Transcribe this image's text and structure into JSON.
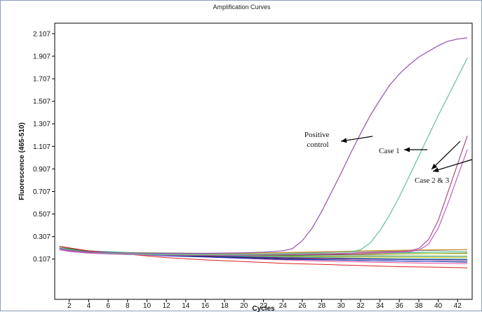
{
  "chart_data": {
    "type": "line",
    "title": "Amplification Curves",
    "xlabel": "Cycles",
    "ylabel": "Fluorescence (465-510)",
    "xlim": [
      0.5,
      43.5
    ],
    "ylim": [
      -0.25,
      2.2
    ],
    "x_ticks": [
      2,
      4,
      6,
      8,
      10,
      12,
      14,
      16,
      18,
      20,
      22,
      24,
      26,
      28,
      30,
      32,
      34,
      36,
      38,
      40,
      42
    ],
    "y_ticks": [
      0.107,
      0.307,
      0.507,
      0.707,
      0.907,
      1.107,
      1.307,
      1.507,
      1.707,
      1.907,
      2.107
    ],
    "y_tick_labels": [
      "0.107",
      "0.307",
      "0.507",
      "0.707",
      "0.907",
      "1.107",
      "1.307",
      "1.507",
      "1.707",
      "1.907",
      "2.107"
    ],
    "grid": false,
    "legend": "none",
    "series": [
      {
        "color": "#9a5cb4",
        "x": [
          1,
          2,
          4,
          6,
          8,
          10,
          12,
          14,
          16,
          18,
          20,
          22,
          24,
          25,
          26,
          27,
          28,
          29,
          30,
          31,
          32,
          33,
          34,
          35,
          36,
          37,
          38,
          39,
          40,
          41,
          42,
          43
        ],
        "y": [
          0.2,
          0.185,
          0.17,
          0.165,
          0.16,
          0.158,
          0.157,
          0.157,
          0.158,
          0.16,
          0.163,
          0.168,
          0.18,
          0.2,
          0.27,
          0.38,
          0.53,
          0.7,
          0.87,
          1.05,
          1.22,
          1.38,
          1.52,
          1.65,
          1.75,
          1.83,
          1.9,
          1.95,
          2.0,
          2.04,
          2.06,
          2.07
        ]
      },
      {
        "color": "#6cc79a",
        "x": [
          1,
          2,
          4,
          6,
          8,
          10,
          12,
          14,
          16,
          18,
          20,
          22,
          24,
          26,
          28,
          30,
          31,
          32,
          33,
          34,
          35,
          36,
          37,
          38,
          39,
          40,
          41,
          42,
          43
        ],
        "y": [
          0.21,
          0.19,
          0.17,
          0.16,
          0.155,
          0.15,
          0.148,
          0.147,
          0.147,
          0.148,
          0.15,
          0.152,
          0.155,
          0.158,
          0.162,
          0.168,
          0.172,
          0.19,
          0.25,
          0.36,
          0.5,
          0.66,
          0.84,
          1.02,
          1.2,
          1.38,
          1.55,
          1.72,
          1.89
        ]
      },
      {
        "color": "#b05c8c",
        "x": [
          1,
          2,
          4,
          6,
          8,
          10,
          12,
          14,
          16,
          18,
          20,
          22,
          24,
          26,
          28,
          30,
          32,
          34,
          36,
          37,
          38,
          39,
          40,
          41,
          42,
          43
        ],
        "y": [
          0.2,
          0.18,
          0.165,
          0.158,
          0.152,
          0.148,
          0.145,
          0.143,
          0.142,
          0.142,
          0.143,
          0.145,
          0.148,
          0.15,
          0.153,
          0.157,
          0.162,
          0.168,
          0.175,
          0.18,
          0.2,
          0.28,
          0.45,
          0.7,
          0.95,
          1.2
        ]
      },
      {
        "color": "#c06cc8",
        "x": [
          1,
          2,
          4,
          6,
          8,
          10,
          12,
          14,
          16,
          18,
          20,
          22,
          24,
          26,
          28,
          30,
          32,
          34,
          36,
          37,
          38,
          39,
          40,
          41,
          42,
          43
        ],
        "y": [
          0.19,
          0.175,
          0.16,
          0.153,
          0.148,
          0.145,
          0.142,
          0.14,
          0.14,
          0.14,
          0.141,
          0.143,
          0.145,
          0.147,
          0.15,
          0.153,
          0.157,
          0.162,
          0.168,
          0.172,
          0.185,
          0.24,
          0.38,
          0.6,
          0.84,
          1.08
        ]
      },
      {
        "color": "#e02020",
        "x": [
          1,
          4,
          8,
          12,
          16,
          20,
          24,
          28,
          32,
          36,
          40,
          43
        ],
        "y": [
          0.22,
          0.18,
          0.15,
          0.12,
          0.1,
          0.085,
          0.07,
          0.06,
          0.05,
          0.04,
          0.035,
          0.03
        ]
      },
      {
        "color": "#1f3fd0",
        "x": [
          1,
          4,
          8,
          12,
          16,
          20,
          24,
          28,
          32,
          36,
          40,
          43
        ],
        "y": [
          0.2,
          0.17,
          0.15,
          0.135,
          0.125,
          0.115,
          0.105,
          0.1,
          0.095,
          0.09,
          0.085,
          0.08
        ]
      },
      {
        "color": "#1a8a2a",
        "x": [
          1,
          4,
          8,
          12,
          16,
          20,
          24,
          28,
          32,
          36,
          40,
          43
        ],
        "y": [
          0.21,
          0.175,
          0.16,
          0.15,
          0.145,
          0.14,
          0.138,
          0.136,
          0.135,
          0.134,
          0.133,
          0.132
        ]
      },
      {
        "color": "#d08a1a",
        "x": [
          1,
          4,
          8,
          12,
          16,
          20,
          24,
          28,
          32,
          36,
          40,
          43
        ],
        "y": [
          0.19,
          0.17,
          0.16,
          0.155,
          0.155,
          0.158,
          0.165,
          0.172,
          0.18,
          0.186,
          0.19,
          0.192
        ]
      },
      {
        "color": "#2a2a2a",
        "x": [
          1,
          4,
          8,
          12,
          16,
          20,
          24,
          28,
          32,
          36,
          40,
          43
        ],
        "y": [
          0.2,
          0.17,
          0.15,
          0.14,
          0.13,
          0.12,
          0.11,
          0.102,
          0.095,
          0.09,
          0.086,
          0.083
        ]
      },
      {
        "color": "#1aa5c8",
        "x": [
          1,
          4,
          8,
          12,
          16,
          20,
          24,
          28,
          32,
          36,
          40,
          43
        ],
        "y": [
          0.22,
          0.18,
          0.16,
          0.148,
          0.14,
          0.132,
          0.126,
          0.12,
          0.115,
          0.11,
          0.108,
          0.106
        ]
      },
      {
        "color": "#a8c81a",
        "x": [
          1,
          4,
          8,
          12,
          16,
          20,
          24,
          28,
          32,
          36,
          40,
          43
        ],
        "y": [
          0.2,
          0.175,
          0.163,
          0.158,
          0.155,
          0.153,
          0.152,
          0.152,
          0.153,
          0.154,
          0.155,
          0.156
        ]
      },
      {
        "color": "#e84a9a",
        "x": [
          1,
          4,
          8,
          12,
          16,
          20,
          24,
          28,
          32,
          36,
          40,
          43
        ],
        "y": [
          0.21,
          0.18,
          0.16,
          0.14,
          0.125,
          0.112,
          0.1,
          0.09,
          0.082,
          0.075,
          0.07,
          0.066
        ]
      },
      {
        "color": "#7a3a1a",
        "x": [
          1,
          4,
          8,
          12,
          16,
          20,
          24,
          28,
          32,
          36,
          40,
          43
        ],
        "y": [
          0.19,
          0.17,
          0.158,
          0.15,
          0.146,
          0.144,
          0.143,
          0.145,
          0.148,
          0.152,
          0.156,
          0.16
        ]
      },
      {
        "color": "#4a2ab0",
        "x": [
          1,
          4,
          8,
          12,
          16,
          20,
          24,
          28,
          32,
          36,
          40,
          43
        ],
        "y": [
          0.2,
          0.172,
          0.155,
          0.143,
          0.133,
          0.124,
          0.116,
          0.11,
          0.106,
          0.103,
          0.1,
          0.098
        ]
      },
      {
        "color": "#20b070",
        "x": [
          1,
          4,
          8,
          12,
          16,
          20,
          24,
          28,
          32,
          36,
          40,
          43
        ],
        "y": [
          0.21,
          0.18,
          0.165,
          0.157,
          0.152,
          0.15,
          0.151,
          0.154,
          0.158,
          0.163,
          0.168,
          0.172
        ]
      },
      {
        "color": "#c8b41a",
        "x": [
          1,
          4,
          8,
          12,
          16,
          20,
          24,
          28,
          32,
          36,
          40,
          43
        ],
        "y": [
          0.2,
          0.175,
          0.16,
          0.15,
          0.142,
          0.136,
          0.131,
          0.127,
          0.124,
          0.122,
          0.12,
          0.119
        ]
      },
      {
        "color": "#8a8a8a",
        "x": [
          1,
          4,
          8,
          12,
          16,
          20,
          24,
          28,
          32,
          36,
          40,
          43
        ],
        "y": [
          0.2,
          0.176,
          0.166,
          0.162,
          0.16,
          0.161,
          0.163,
          0.167,
          0.172,
          0.178,
          0.184,
          0.19
        ]
      },
      {
        "color": "#d01a1a",
        "x": [
          1,
          4,
          8,
          12,
          16,
          20,
          24,
          28,
          32,
          36,
          40,
          43
        ],
        "y": [
          0.22,
          0.178,
          0.158,
          0.145,
          0.136,
          0.128,
          0.12,
          0.114,
          0.11,
          0.107,
          0.104,
          0.102
        ]
      }
    ],
    "annotations": [
      {
        "lines": [
          "Positive",
          "control"
        ]
      },
      {
        "lines": [
          "Case 1"
        ]
      },
      {
        "lines": [
          "Case 2 & 3"
        ]
      }
    ]
  }
}
